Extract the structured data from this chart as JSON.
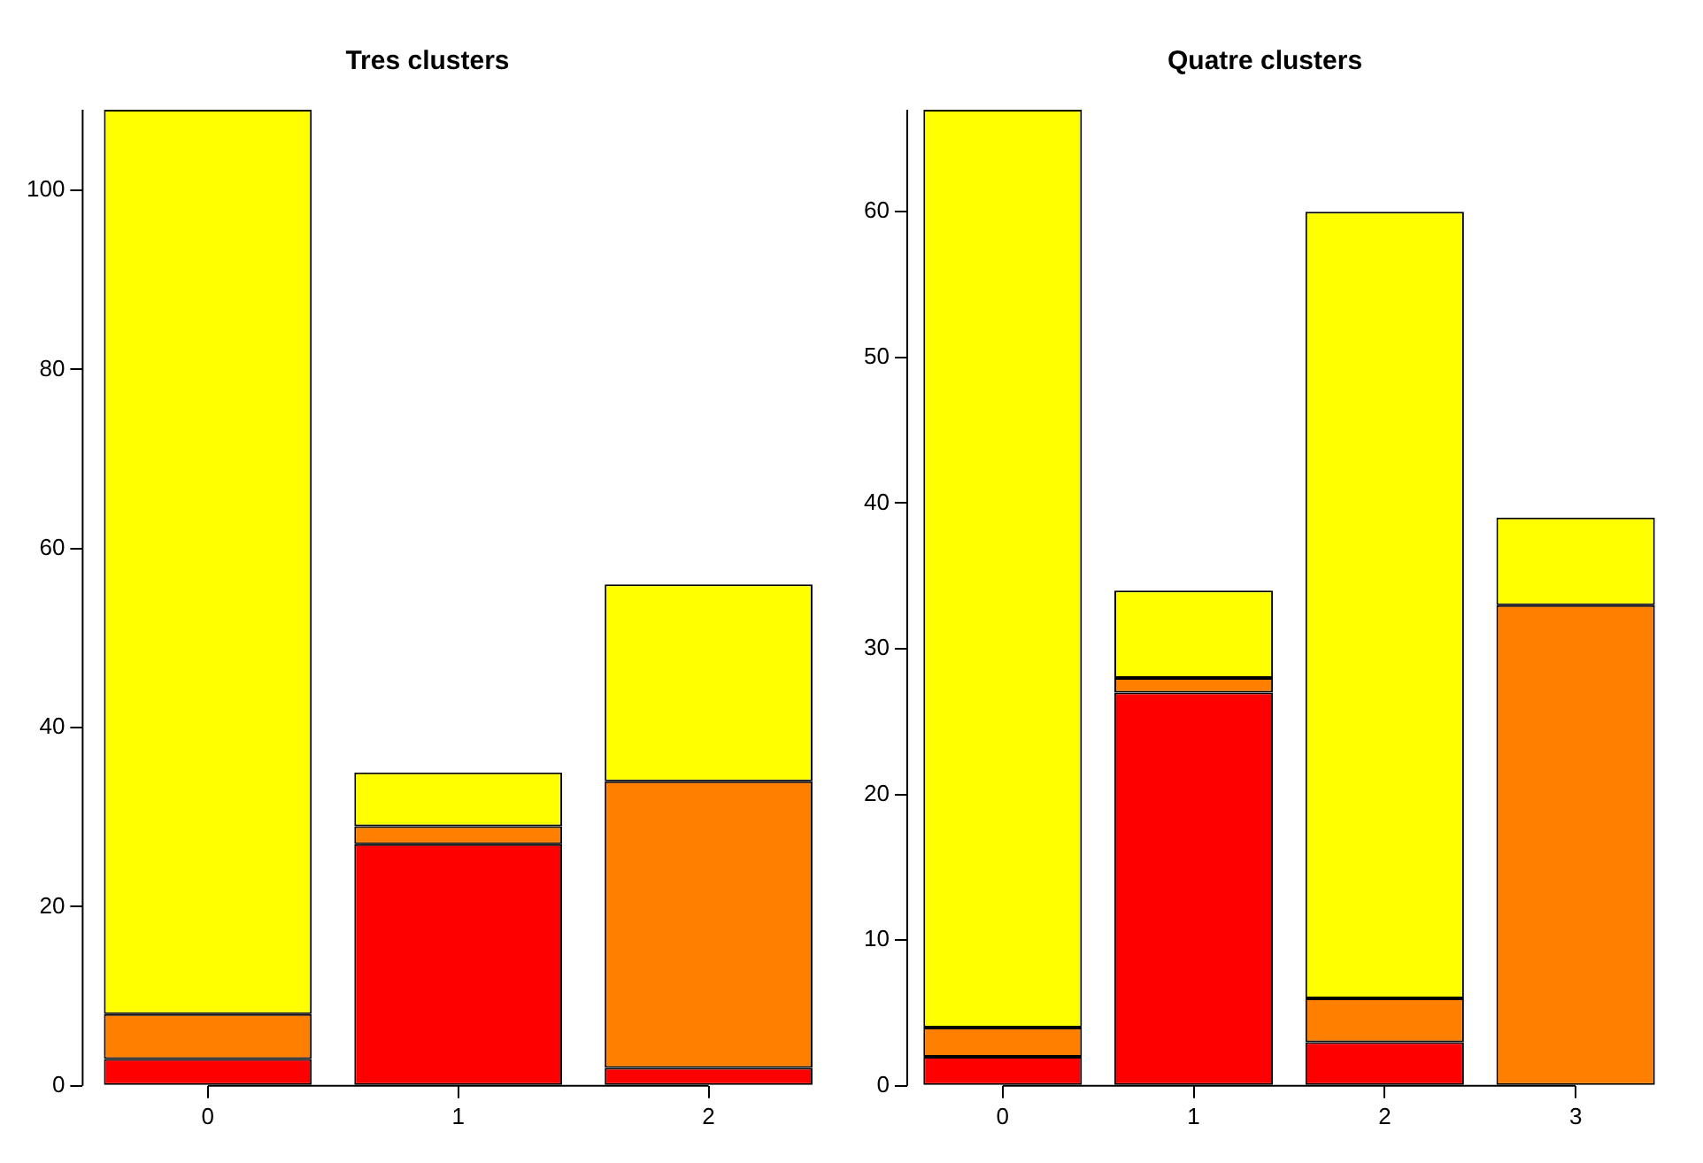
{
  "chart_data": [
    {
      "type": "bar",
      "title": "Tres clusters",
      "categories": [
        "0",
        "1",
        "2"
      ],
      "stacked": true,
      "ylim": [
        0,
        109
      ],
      "yticks": [
        0,
        20,
        40,
        60,
        80,
        100
      ],
      "grid": false,
      "legend": false,
      "series": [
        {
          "color": "#ff0000",
          "values": [
            3,
            27,
            2
          ]
        },
        {
          "color": "#ff8000",
          "values": [
            5,
            2,
            32
          ]
        },
        {
          "color": "#ffff00",
          "values": [
            101,
            6,
            22
          ]
        }
      ]
    },
    {
      "type": "bar",
      "title": "Quatre clusters",
      "categories": [
        "0",
        "1",
        "2",
        "3"
      ],
      "stacked": true,
      "ylim": [
        0,
        67
      ],
      "yticks": [
        0,
        10,
        20,
        30,
        40,
        50,
        60
      ],
      "grid": false,
      "legend": false,
      "series": [
        {
          "color": "#ff0000",
          "values": [
            2,
            27,
            3,
            0
          ]
        },
        {
          "color": "#ff8000",
          "values": [
            2,
            1,
            3,
            33
          ]
        },
        {
          "color": "#ffff00",
          "values": [
            63,
            6,
            54,
            6
          ]
        }
      ]
    }
  ]
}
